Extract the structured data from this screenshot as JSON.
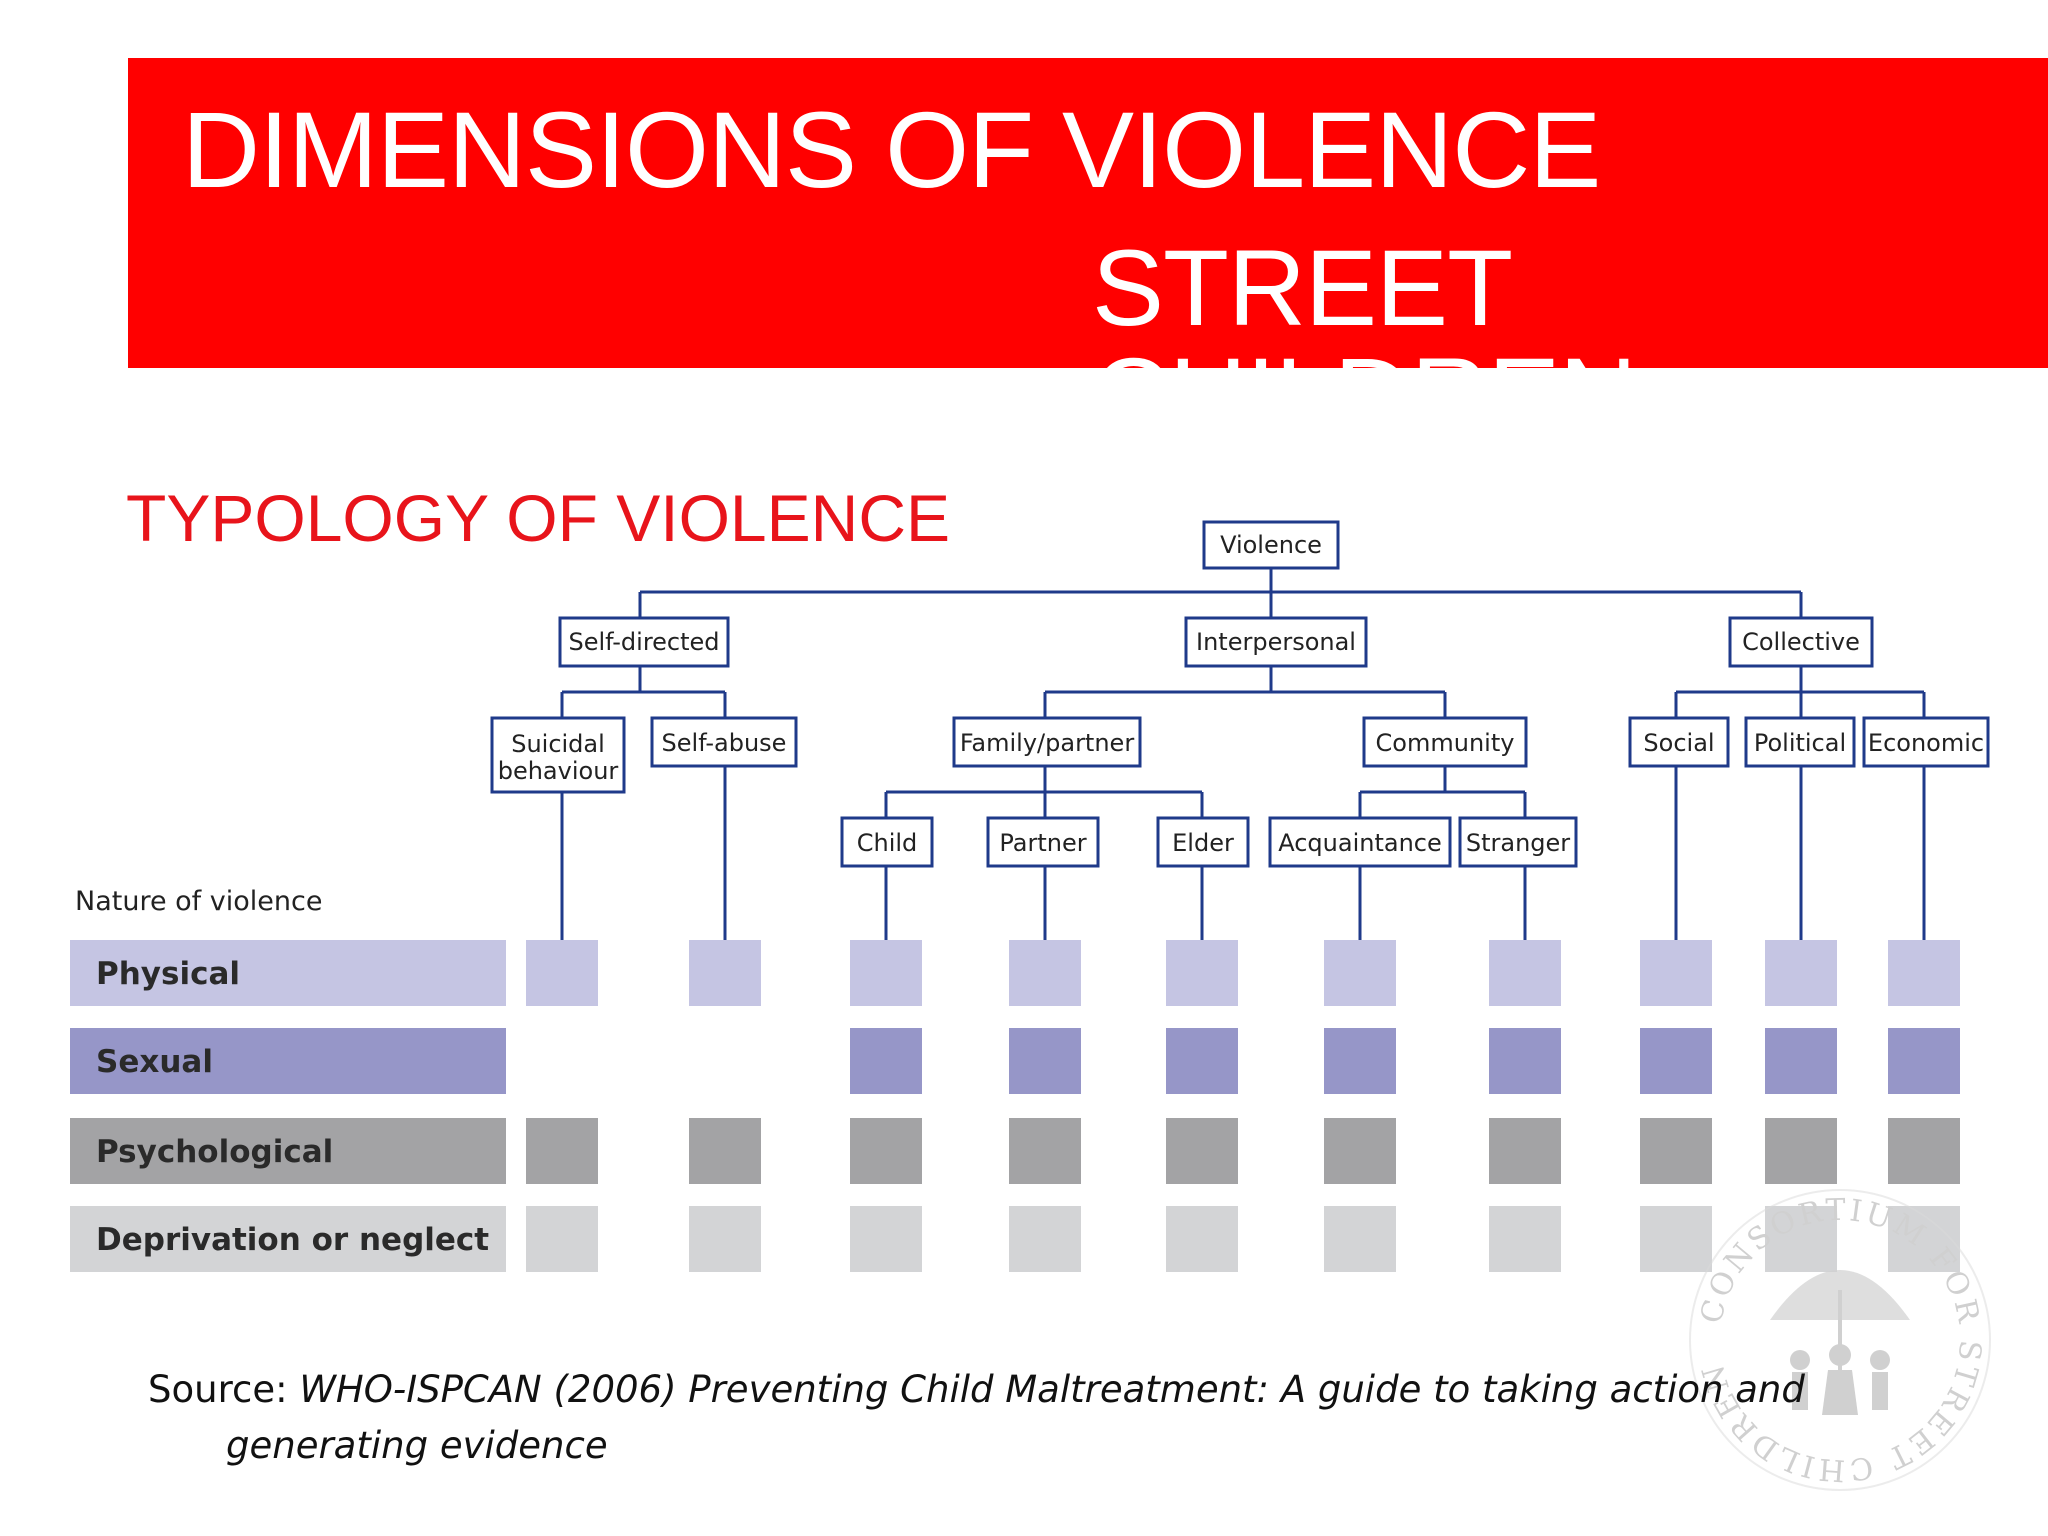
{
  "header": {
    "title_line_1": "DIMENSIONS OF VIOLENCE",
    "title_line_2": "STREET CHILDREN"
  },
  "subtitle": "TYPOLOGY OF VIOLENCE",
  "diagram": {
    "root": "Violence",
    "level1": [
      "Self-directed",
      "Interpersonal",
      "Collective"
    ],
    "level2": [
      "Suicidal behaviour",
      "Self-abuse",
      "Family/partner",
      "Community",
      "Social",
      "Political",
      "Economic"
    ],
    "level3": [
      "Child",
      "Partner",
      "Elder",
      "Acquaintance",
      "Stranger"
    ],
    "nature_heading": "Nature of violence",
    "rows": [
      {
        "label": "Physical",
        "color": "#c5c5e3",
        "present": [
          true,
          true,
          true,
          true,
          true,
          true,
          true,
          true,
          true,
          true
        ]
      },
      {
        "label": "Sexual",
        "color": "#9696c8",
        "present": [
          false,
          false,
          true,
          true,
          true,
          true,
          true,
          true,
          true,
          true
        ]
      },
      {
        "label": "Psychological",
        "color": "#a3a3a5",
        "present": [
          true,
          true,
          true,
          true,
          true,
          true,
          true,
          true,
          true,
          true
        ]
      },
      {
        "label": "Deprivation or neglect",
        "color": "#d3d4d6",
        "present": [
          true,
          true,
          true,
          true,
          true,
          true,
          true,
          true,
          true,
          true
        ]
      }
    ],
    "line_color": "#1f3a8a"
  },
  "source": {
    "prefix": "Source: ",
    "reference_line_1": "WHO-ISPCAN (2006) Preventing Child Maltreatment: A guide to taking action and",
    "reference_line_2": "generating evidence"
  },
  "watermark": {
    "text": "CONSORTIUM FOR STREET CHILDREN"
  },
  "colors": {
    "banner": "#ff0000",
    "subtitle": "#e8141b"
  }
}
